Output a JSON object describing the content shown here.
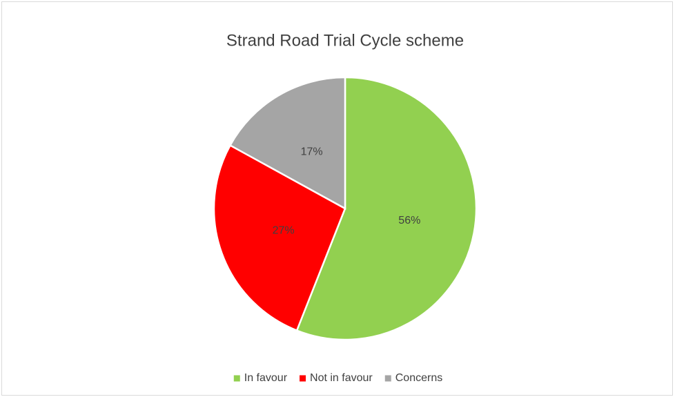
{
  "chart_data": {
    "type": "pie",
    "title": "Strand Road Trial Cycle scheme",
    "categories": [
      "In favour",
      "Not in favour",
      "Concerns"
    ],
    "values": [
      56,
      27,
      17
    ],
    "value_labels": [
      "56%",
      "27%",
      "17%"
    ],
    "colors": [
      "#92d050",
      "#ff0000",
      "#a5a5a5"
    ],
    "legend": "bottom"
  }
}
